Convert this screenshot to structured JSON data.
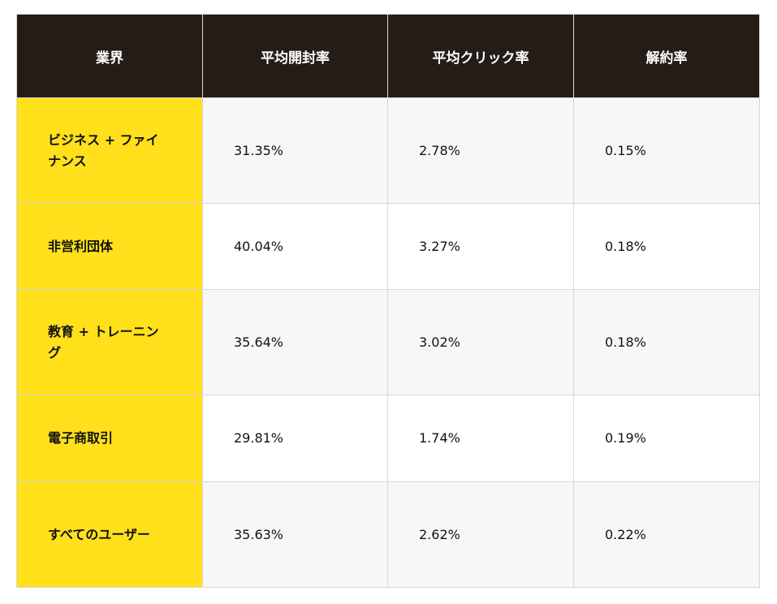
{
  "table": {
    "headers": [
      "業界",
      "平均開封率",
      "平均クリック率",
      "解約率"
    ],
    "rows": [
      {
        "industry": "ビジネス + ファイナンス",
        "open_rate": "31.35%",
        "click_rate": "2.78%",
        "unsubscribe_rate": "0.15%"
      },
      {
        "industry": "非営利団体",
        "open_rate": "40.04%",
        "click_rate": "3.27%",
        "unsubscribe_rate": "0.18%"
      },
      {
        "industry": "教育 + トレーニング",
        "open_rate": "35.64%",
        "click_rate": "3.02%",
        "unsubscribe_rate": "0.18%"
      },
      {
        "industry": "電子商取引",
        "open_rate": "29.81%",
        "click_rate": "1.74%",
        "unsubscribe_rate": "0.19%"
      },
      {
        "industry": "すべてのユーザー",
        "open_rate": "35.63%",
        "click_rate": "2.62%",
        "unsubscribe_rate": "0.22%"
      }
    ]
  },
  "colors": {
    "header_bg": "#241c17",
    "header_text": "#ffffff",
    "industry_bg": "#ffe01b",
    "stripe_bg": "#f7f7f7",
    "border": "#d9d9d6"
  }
}
